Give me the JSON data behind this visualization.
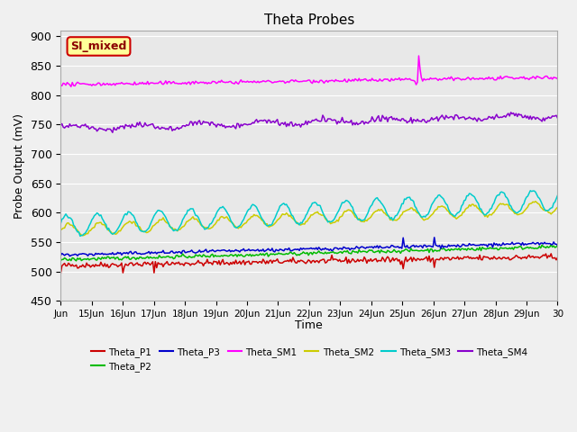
{
  "title": "Theta Probes",
  "ylabel": "Probe Output (mV)",
  "xlabel": "Time",
  "ylim": [
    450,
    910
  ],
  "yticks": [
    450,
    500,
    550,
    600,
    650,
    700,
    750,
    800,
    850,
    900
  ],
  "fig_bg_color": "#f0f0f0",
  "plot_bg_color": "#e8e8e8",
  "grid_color": "#ffffff",
  "annotation_text": "SI_mixed",
  "annotation_fg": "#8b0000",
  "annotation_bg": "#ffff99",
  "annotation_border": "#cc0000",
  "series_order": [
    "Theta_P1",
    "Theta_P2",
    "Theta_P3",
    "Theta_SM1",
    "Theta_SM2",
    "Theta_SM3",
    "Theta_SM4"
  ],
  "series": {
    "Theta_P1": {
      "color": "#cc0000"
    },
    "Theta_P2": {
      "color": "#00bb00"
    },
    "Theta_P3": {
      "color": "#0000cc"
    },
    "Theta_SM1": {
      "color": "#ff00ff"
    },
    "Theta_SM2": {
      "color": "#cccc00"
    },
    "Theta_SM3": {
      "color": "#00cccc"
    },
    "Theta_SM4": {
      "color": "#8800cc"
    }
  },
  "x_labels": [
    "Jun",
    "15Jun",
    "16Jun",
    "17Jun",
    "18Jun",
    "19Jun",
    "20Jun",
    "21Jun",
    "22Jun",
    "23Jun",
    "24Jun",
    "25Jun",
    "26Jun",
    "27Jun",
    "28Jun",
    "29Jun",
    "30"
  ],
  "n_days": 16,
  "points_per_day": 24,
  "sm1_spike_day": 11,
  "p1_spike_days": [
    0,
    2,
    3,
    11,
    12
  ],
  "p3_spike_days": [
    11,
    12
  ]
}
